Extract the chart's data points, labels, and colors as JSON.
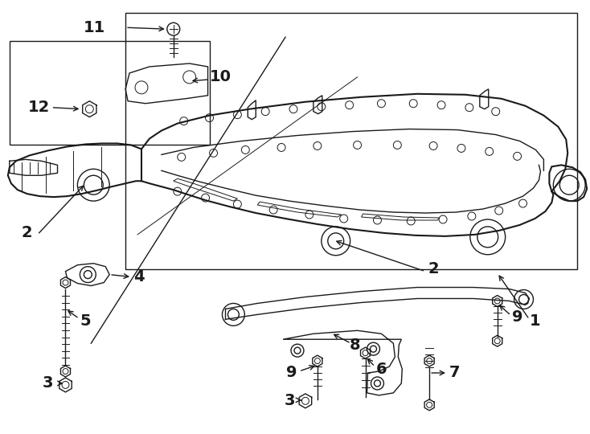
{
  "bg_color": "#ffffff",
  "line_color": "#1a1a1a",
  "fig_width": 7.34,
  "fig_height": 5.4,
  "dpi": 100
}
